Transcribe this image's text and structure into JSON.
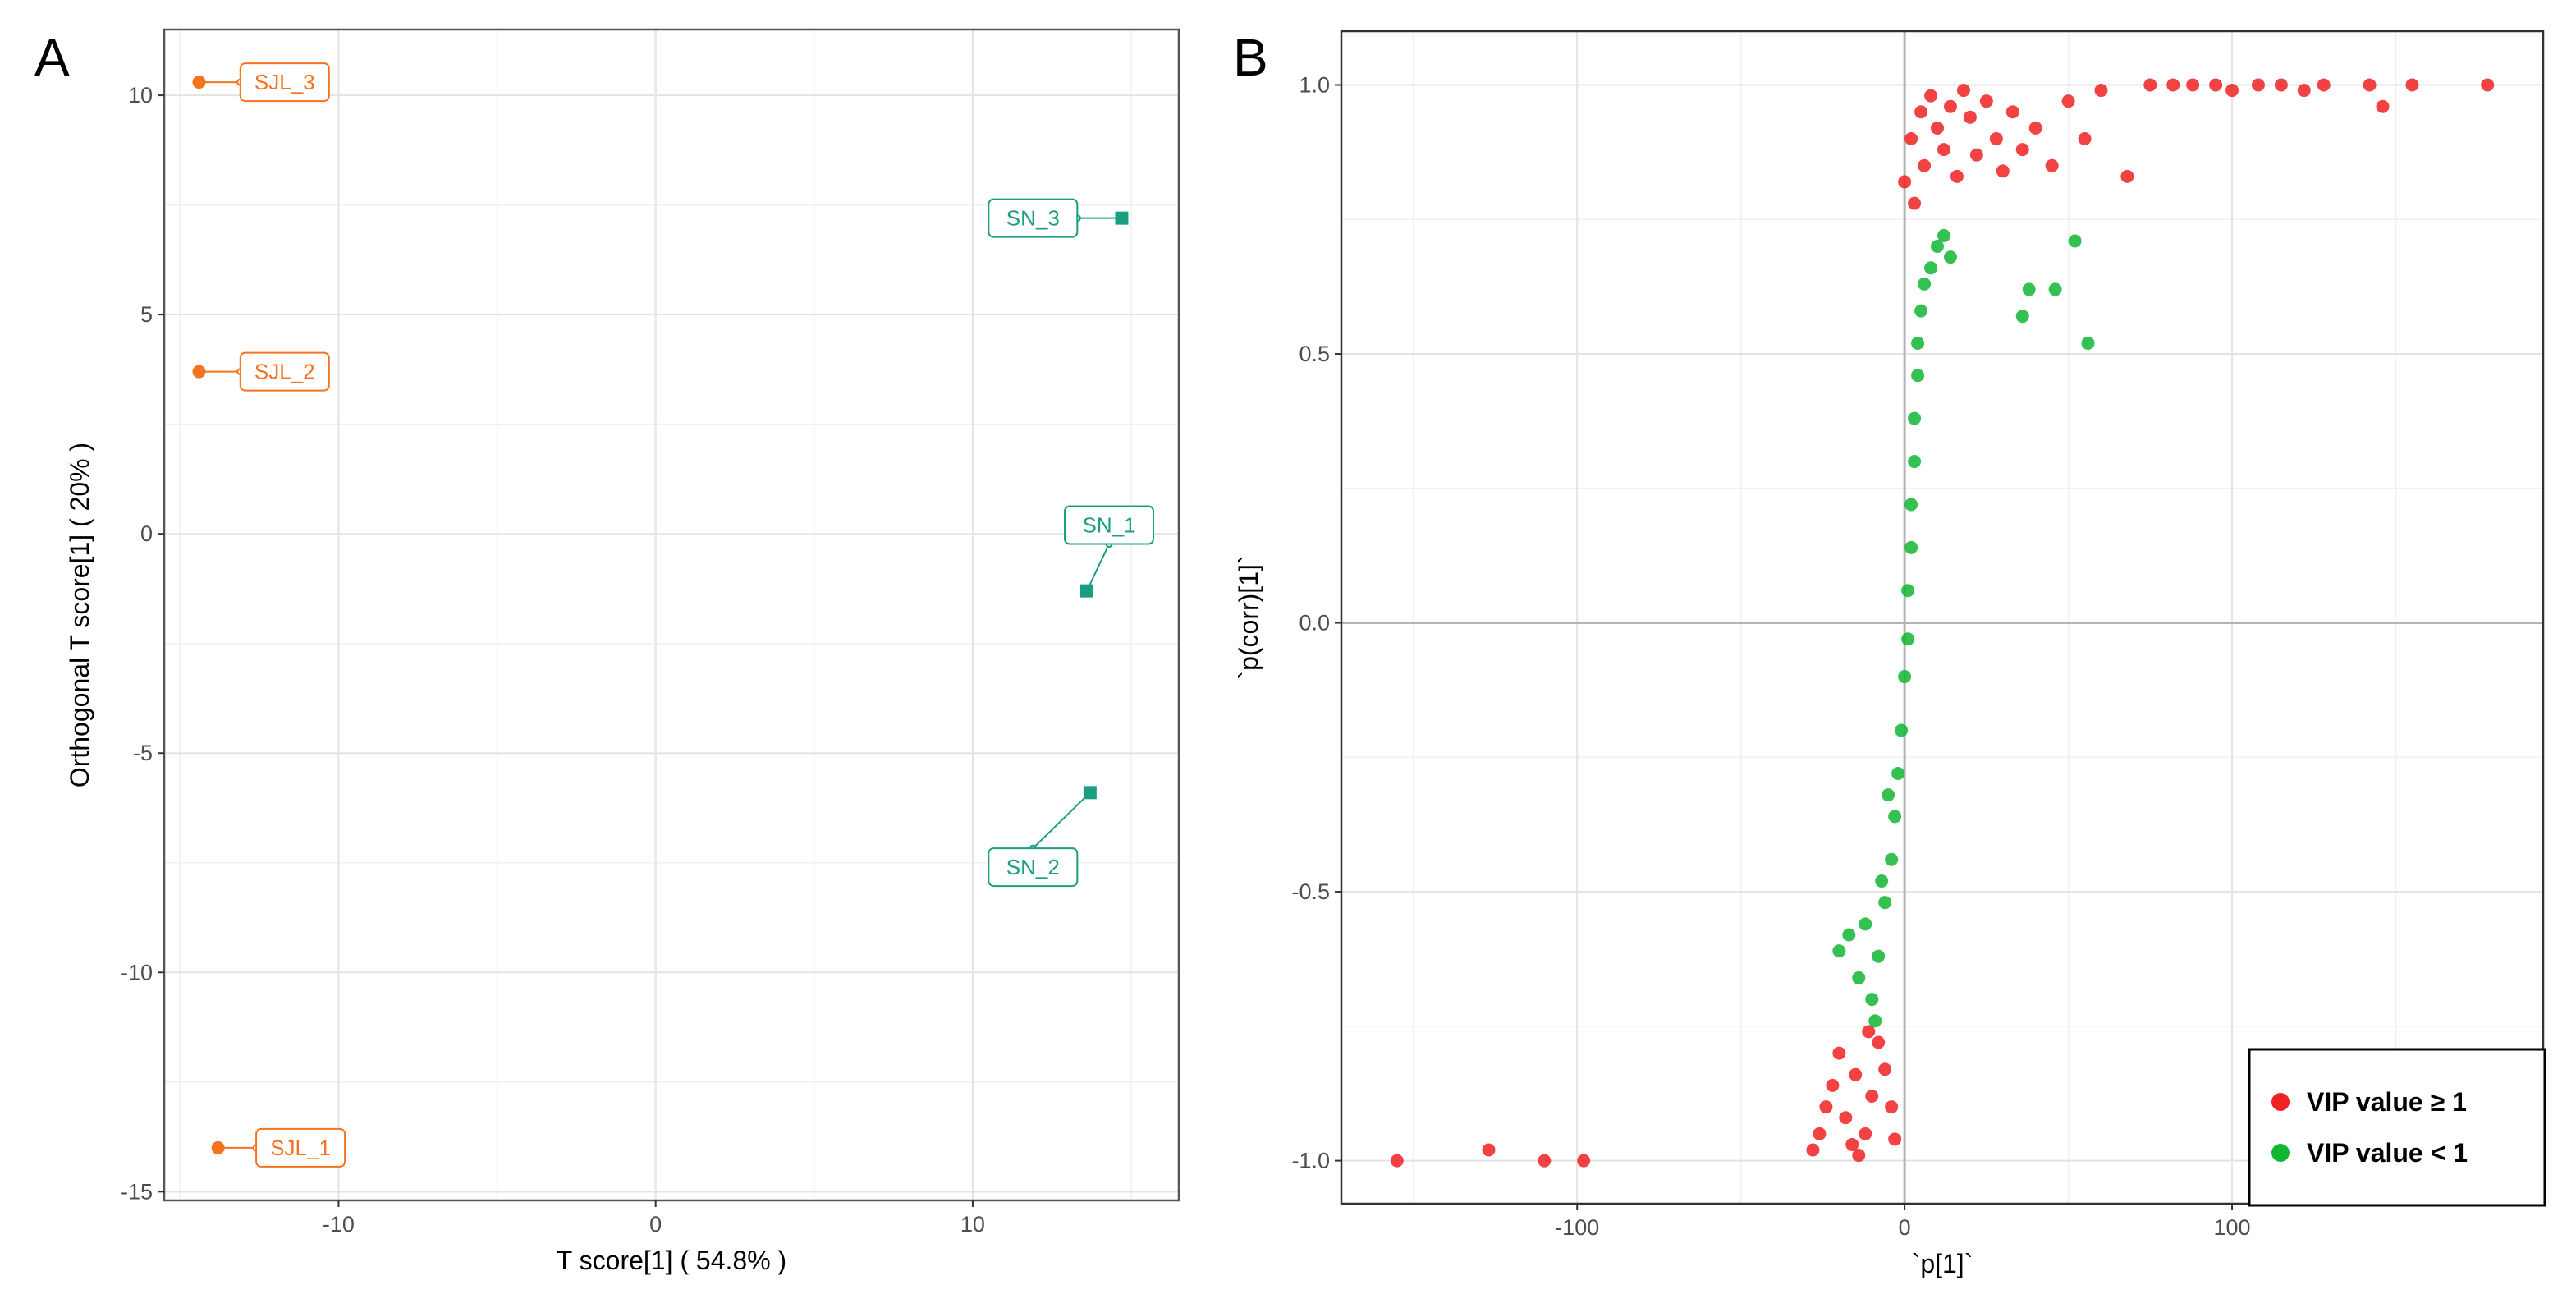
{
  "panel_a": {
    "label": "A",
    "colors": {
      "SJL": "#f4731f",
      "SN": "#1a9e81",
      "grid": "#e6e6e6",
      "zero": "#ebebeb"
    }
  },
  "panel_b": {
    "label": "B",
    "colors": {
      "high": "#ee2222",
      "low": "#11b633",
      "grid": "#e6e6e6",
      "zero": "#b3b3b3"
    }
  },
  "chart_data": [
    {
      "type": "scatter",
      "title": "",
      "xlabel": "T score[1] ( 54.8% )",
      "ylabel": "Orthogonal T score[1] ( 20% )",
      "xlim": [
        -15.5,
        16.5
      ],
      "ylim": [
        -15.2,
        11.5
      ],
      "xticks": [
        -10,
        0,
        10
      ],
      "yticks": [
        -15,
        -10,
        -5,
        0,
        5,
        10
      ],
      "xtick_labels": [
        "-10",
        "0",
        "10"
      ],
      "ytick_labels": [
        "-15",
        "-10",
        "-5",
        "0",
        "5",
        "10"
      ],
      "points": [
        {
          "name": "SJL_3",
          "group": "SJL",
          "x": -14.4,
          "y": 10.3,
          "lx": -11.7,
          "ly": 10.3
        },
        {
          "name": "SJL_2",
          "group": "SJL",
          "x": -14.4,
          "y": 3.7,
          "lx": -11.7,
          "ly": 3.7
        },
        {
          "name": "SJL_1",
          "group": "SJL",
          "x": -13.8,
          "y": -14.0,
          "lx": -11.2,
          "ly": -14.0
        },
        {
          "name": "SN_3",
          "group": "SN",
          "x": 14.7,
          "y": 7.2,
          "lx": 11.9,
          "ly": 7.2
        },
        {
          "name": "SN_1",
          "group": "SN",
          "x": 13.6,
          "y": -1.3,
          "lx": 14.3,
          "ly": 0.2
        },
        {
          "name": "SN_2",
          "group": "SN",
          "x": 13.7,
          "y": -5.9,
          "lx": 11.9,
          "ly": -7.6
        }
      ]
    },
    {
      "type": "scatter",
      "title": "",
      "xlabel": "`p[1]`",
      "ylabel": "`p(corr)[1]`",
      "xlim": [
        -172,
        195
      ],
      "ylim": [
        -1.08,
        1.1
      ],
      "xticks": [
        -100,
        0,
        100
      ],
      "yticks": [
        -1.0,
        -0.5,
        0.0,
        0.5,
        1.0
      ],
      "xtick_labels": [
        "-100",
        "0",
        "100"
      ],
      "ytick_labels": [
        "-1.0",
        "-0.5",
        "0.0",
        "0.5",
        "1.0"
      ],
      "legend": {
        "position": "bottom-right",
        "entries": [
          {
            "label": "VIP value ≥ 1",
            "series": "high"
          },
          {
            "label": "VIP value < 1",
            "series": "low"
          }
        ]
      },
      "series": [
        {
          "name": "VIP value ≥ 1",
          "key": "high",
          "points": [
            [
              -155,
              -1.0
            ],
            [
              -127,
              -0.98
            ],
            [
              -110,
              -1.0
            ],
            [
              -98,
              -1.0
            ],
            [
              -28,
              -0.98
            ],
            [
              -26,
              -0.95
            ],
            [
              -24,
              -0.9
            ],
            [
              -22,
              -0.86
            ],
            [
              -20,
              -0.8
            ],
            [
              -18,
              -0.92
            ],
            [
              -16,
              -0.97
            ],
            [
              -14,
              -0.99
            ],
            [
              -12,
              -0.95
            ],
            [
              -10,
              -0.88
            ],
            [
              -8,
              -0.78
            ],
            [
              -6,
              -0.83
            ],
            [
              -4,
              -0.9
            ],
            [
              -3,
              -0.96
            ],
            [
              -15,
              -0.84
            ],
            [
              -11,
              -0.76
            ],
            [
              0,
              0.82
            ],
            [
              2,
              0.9
            ],
            [
              3,
              0.78
            ],
            [
              5,
              0.95
            ],
            [
              6,
              0.85
            ],
            [
              8,
              0.98
            ],
            [
              10,
              0.92
            ],
            [
              12,
              0.88
            ],
            [
              14,
              0.96
            ],
            [
              16,
              0.83
            ],
            [
              18,
              0.99
            ],
            [
              20,
              0.94
            ],
            [
              22,
              0.87
            ],
            [
              25,
              0.97
            ],
            [
              28,
              0.9
            ],
            [
              30,
              0.84
            ],
            [
              33,
              0.95
            ],
            [
              36,
              0.88
            ],
            [
              40,
              0.92
            ],
            [
              45,
              0.85
            ],
            [
              50,
              0.97
            ],
            [
              55,
              0.9
            ],
            [
              60,
              0.99
            ],
            [
              68,
              0.83
            ],
            [
              75,
              1.0
            ],
            [
              82,
              1.0
            ],
            [
              88,
              1.0
            ],
            [
              95,
              1.0
            ],
            [
              100,
              0.99
            ],
            [
              108,
              1.0
            ],
            [
              115,
              1.0
            ],
            [
              122,
              0.99
            ],
            [
              128,
              1.0
            ],
            [
              142,
              1.0
            ],
            [
              146,
              0.96
            ],
            [
              155,
              1.0
            ],
            [
              178,
              1.0
            ]
          ]
        },
        {
          "name": "VIP value < 1",
          "key": "low",
          "points": [
            [
              -20,
              -0.61
            ],
            [
              -17,
              -0.58
            ],
            [
              -14,
              -0.66
            ],
            [
              -12,
              -0.56
            ],
            [
              -10,
              -0.7
            ],
            [
              -8,
              -0.62
            ],
            [
              -6,
              -0.52
            ],
            [
              -4,
              -0.44
            ],
            [
              -3,
              -0.36
            ],
            [
              -2,
              -0.28
            ],
            [
              -1,
              -0.2
            ],
            [
              0,
              -0.1
            ],
            [
              1,
              -0.03
            ],
            [
              1,
              0.06
            ],
            [
              2,
              0.14
            ],
            [
              2,
              0.22
            ],
            [
              3,
              0.3
            ],
            [
              3,
              0.38
            ],
            [
              4,
              0.46
            ],
            [
              4,
              0.52
            ],
            [
              5,
              0.58
            ],
            [
              6,
              0.63
            ],
            [
              8,
              0.66
            ],
            [
              10,
              0.7
            ],
            [
              12,
              0.72
            ],
            [
              14,
              0.68
            ],
            [
              -9,
              -0.74
            ],
            [
              -7,
              -0.48
            ],
            [
              -5,
              -0.32
            ],
            [
              36,
              0.57
            ],
            [
              38,
              0.62
            ],
            [
              46,
              0.62
            ],
            [
              52,
              0.71
            ],
            [
              56,
              0.52
            ]
          ]
        }
      ]
    }
  ]
}
